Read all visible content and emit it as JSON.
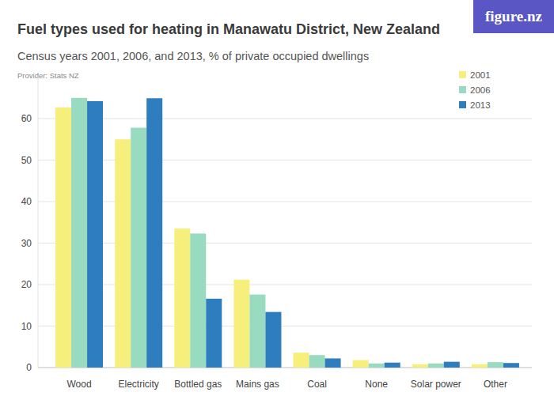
{
  "chart_data": {
    "type": "bar",
    "title": "Fuel types used for heating in Manawatu District, New Zealand",
    "subtitle": "Census years 2001, 2006, and 2013, % of private occupied dwellings",
    "source": "Provider: Stats NZ",
    "logo": "figure.nz",
    "categories": [
      "Wood",
      "Electricity",
      "Bottled gas",
      "Mains gas",
      "Coal",
      "None",
      "Solar power",
      "Other"
    ],
    "series": [
      {
        "name": "2001",
        "color": "#f6ef7c",
        "values": [
          62.7,
          55.0,
          33.5,
          21.2,
          3.6,
          1.8,
          0.8,
          0.8
        ]
      },
      {
        "name": "2006",
        "color": "#98dbc0",
        "values": [
          65.0,
          57.8,
          32.3,
          17.6,
          3.0,
          1.0,
          1.0,
          1.3
        ]
      },
      {
        "name": "2013",
        "color": "#2e7dbf",
        "values": [
          64.2,
          64.9,
          16.6,
          13.4,
          2.2,
          1.2,
          1.4,
          1.1
        ]
      }
    ],
    "ylim": [
      0,
      70
    ],
    "yticks": [
      0,
      10,
      20,
      30,
      40,
      50,
      60
    ],
    "grid": true,
    "legend": "top-right"
  }
}
